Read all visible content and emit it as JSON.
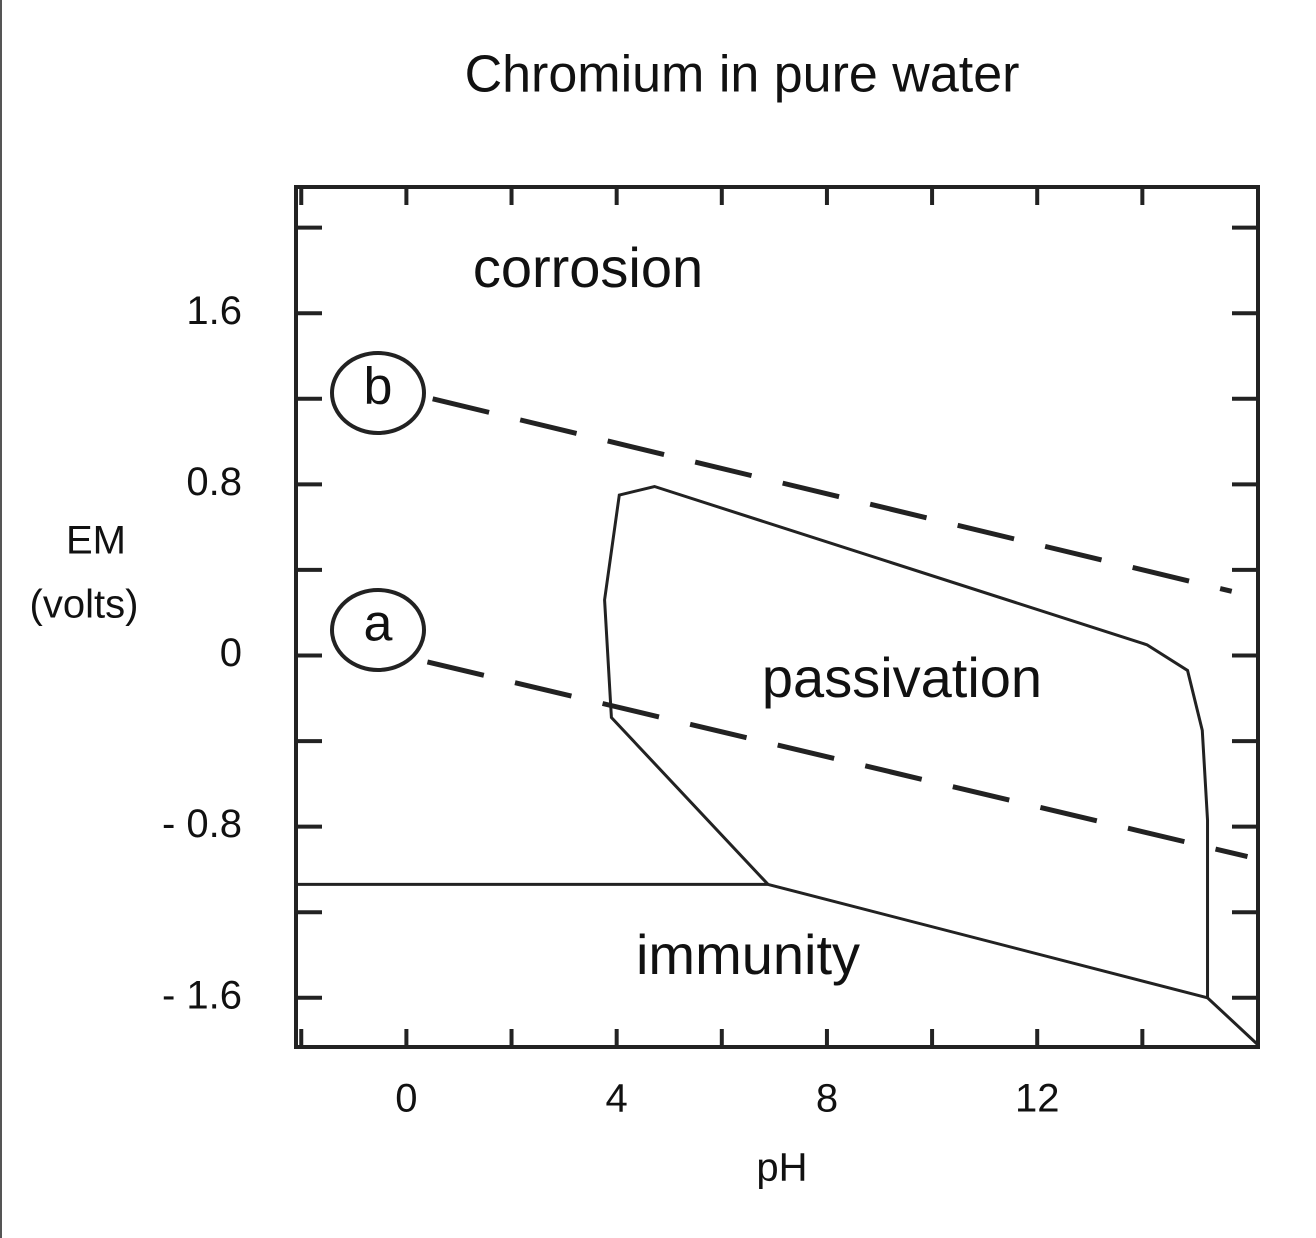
{
  "chart_data": {
    "type": "line",
    "title": "Chromium in pure water",
    "xlabel": "pH",
    "ylabel": [
      "EM",
      "(volts)"
    ],
    "xlim": [
      -2.1,
      16.2
    ],
    "ylim": [
      -1.83,
      2.19
    ],
    "xticks": [
      0,
      4,
      8,
      12
    ],
    "xticks_minor": [
      -2,
      2,
      6,
      10,
      14
    ],
    "yticks": [
      1.6,
      0.8,
      0,
      {
        "value": -0.8,
        "label": "- 0.8"
      },
      {
        "value": -1.6,
        "label": "- 1.6"
      }
    ],
    "yticks_minor": [
      2.0,
      1.2,
      0.4,
      -0.4,
      -1.2
    ],
    "annotations": [
      "corrosion",
      "passivation",
      "immunity",
      "b",
      "a"
    ],
    "series": [
      {
        "color": "#222222",
        "dashed": true,
        "x": [
          0.5,
          15.7
        ],
        "y": [
          1.2,
          0.3
        ]
      },
      {
        "color": "#222222",
        "dashed": true,
        "x": [
          0.4,
          16.0
        ],
        "y": [
          -0.03,
          -0.94
        ]
      },
      {
        "color": "#222222",
        "dashed": false,
        "x": [
          -2.1,
          6.88
        ],
        "y": [
          -1.07,
          -1.07
        ]
      },
      {
        "color": "#222222",
        "dashed": false,
        "x": [
          6.88,
          3.9,
          3.77,
          4.05,
          4.72,
          14.09,
          14.86,
          15.14,
          15.24,
          15.24,
          16.2
        ],
        "y": [
          -1.07,
          -0.29,
          0.26,
          0.75,
          0.79,
          0.05,
          -0.07,
          -0.35,
          -0.77,
          -1.6,
          -1.82
        ]
      },
      {
        "color": "#222222",
        "dashed": false,
        "x": [
          6.88,
          15.24
        ],
        "y": [
          -1.07,
          -1.6
        ]
      }
    ]
  }
}
